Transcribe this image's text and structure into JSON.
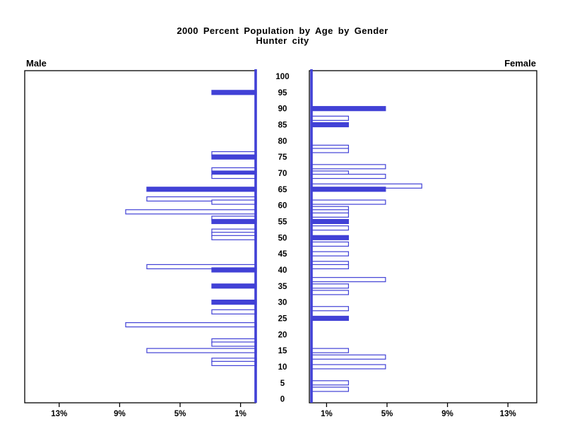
{
  "header": {
    "title_line1": "2000 Percent Population by Age by Gender",
    "title_line2": "Hunter city"
  },
  "panels": {
    "left_label": "Male",
    "right_label": "Female"
  },
  "chart_data": {
    "type": "bar",
    "variant": "population-pyramid",
    "title": "2000 Percent Population by Age by Gender",
    "subtitle": "Hunter city",
    "age_axis": {
      "min": 0,
      "max": 100,
      "tick_interval": 5,
      "tick_labels": [
        "0",
        "5",
        "10",
        "15",
        "20",
        "25",
        "30",
        "35",
        "40",
        "45",
        "50",
        "55",
        "60",
        "65",
        "70",
        "75",
        "80",
        "85",
        "90",
        "95",
        "100"
      ]
    },
    "pct_axis": {
      "ticks": [
        1,
        5,
        9,
        13
      ],
      "left_tick_labels": [
        "13%",
        "9%",
        "5%",
        "1%"
      ],
      "right_tick_labels": [
        "1%",
        "5%",
        "9%",
        "13%"
      ],
      "max_pct": 15.3
    },
    "colors": {
      "bar_blue": "#4141d6",
      "axis_black": "#000000",
      "bar_interior": "#ffffff"
    },
    "legend": {
      "filled_bars": "solid blue",
      "open_bars": "white with blue outline"
    },
    "series": [
      {
        "name": "Male",
        "side": "left",
        "points": [
          {
            "age": 95,
            "pct": 2.9,
            "filled": true
          },
          {
            "age": 76,
            "pct": 2.9,
            "filled": false
          },
          {
            "age": 75,
            "pct": 2.9,
            "filled": true
          },
          {
            "age": 71,
            "pct": 2.9,
            "filled": false
          },
          {
            "age": 70,
            "pct": 2.9,
            "filled": true
          },
          {
            "age": 69,
            "pct": 2.9,
            "filled": false
          },
          {
            "age": 65,
            "pct": 7.2,
            "filled": true
          },
          {
            "age": 62,
            "pct": 7.2,
            "filled": false
          },
          {
            "age": 61,
            "pct": 2.9,
            "filled": false
          },
          {
            "age": 58,
            "pct": 8.6,
            "filled": false
          },
          {
            "age": 56,
            "pct": 2.9,
            "filled": false
          },
          {
            "age": 55,
            "pct": 2.9,
            "filled": true
          },
          {
            "age": 52,
            "pct": 2.9,
            "filled": false
          },
          {
            "age": 51,
            "pct": 2.9,
            "filled": false
          },
          {
            "age": 50,
            "pct": 2.9,
            "filled": false
          },
          {
            "age": 41,
            "pct": 7.2,
            "filled": false
          },
          {
            "age": 40,
            "pct": 2.9,
            "filled": true
          },
          {
            "age": 35,
            "pct": 2.9,
            "filled": true
          },
          {
            "age": 30,
            "pct": 2.9,
            "filled": true
          },
          {
            "age": 27,
            "pct": 2.9,
            "filled": false
          },
          {
            "age": 23,
            "pct": 8.6,
            "filled": false
          },
          {
            "age": 18,
            "pct": 2.9,
            "filled": false
          },
          {
            "age": 17,
            "pct": 2.9,
            "filled": false
          },
          {
            "age": 15,
            "pct": 7.2,
            "filled": false
          },
          {
            "age": 12,
            "pct": 2.9,
            "filled": false
          },
          {
            "age": 11,
            "pct": 2.9,
            "filled": false
          }
        ]
      },
      {
        "name": "Female",
        "side": "right",
        "points": [
          {
            "age": 90,
            "pct": 4.9,
            "filled": true
          },
          {
            "age": 87,
            "pct": 2.45,
            "filled": false
          },
          {
            "age": 85,
            "pct": 2.45,
            "filled": true
          },
          {
            "age": 78,
            "pct": 2.45,
            "filled": false
          },
          {
            "age": 77,
            "pct": 2.45,
            "filled": false
          },
          {
            "age": 72,
            "pct": 4.9,
            "filled": false
          },
          {
            "age": 70,
            "pct": 2.45,
            "filled": false
          },
          {
            "age": 69,
            "pct": 4.9,
            "filled": false
          },
          {
            "age": 66,
            "pct": 7.3,
            "filled": false
          },
          {
            "age": 65,
            "pct": 4.9,
            "filled": true
          },
          {
            "age": 61,
            "pct": 4.9,
            "filled": false
          },
          {
            "age": 59,
            "pct": 2.45,
            "filled": false
          },
          {
            "age": 58,
            "pct": 2.45,
            "filled": false
          },
          {
            "age": 57,
            "pct": 2.45,
            "filled": false
          },
          {
            "age": 55,
            "pct": 2.45,
            "filled": true
          },
          {
            "age": 53,
            "pct": 2.45,
            "filled": false
          },
          {
            "age": 50,
            "pct": 2.45,
            "filled": true
          },
          {
            "age": 48,
            "pct": 2.45,
            "filled": false
          },
          {
            "age": 45,
            "pct": 2.45,
            "filled": false
          },
          {
            "age": 42,
            "pct": 2.45,
            "filled": false
          },
          {
            "age": 41,
            "pct": 2.45,
            "filled": false
          },
          {
            "age": 37,
            "pct": 4.9,
            "filled": false
          },
          {
            "age": 35,
            "pct": 2.45,
            "filled": false
          },
          {
            "age": 33,
            "pct": 2.45,
            "filled": false
          },
          {
            "age": 28,
            "pct": 2.45,
            "filled": false
          },
          {
            "age": 25,
            "pct": 2.45,
            "filled": true
          },
          {
            "age": 15,
            "pct": 2.45,
            "filled": false
          },
          {
            "age": 13,
            "pct": 4.9,
            "filled": false
          },
          {
            "age": 10,
            "pct": 4.9,
            "filled": false
          },
          {
            "age": 5,
            "pct": 2.45,
            "filled": false
          },
          {
            "age": 3,
            "pct": 2.45,
            "filled": false
          }
        ]
      }
    ]
  }
}
